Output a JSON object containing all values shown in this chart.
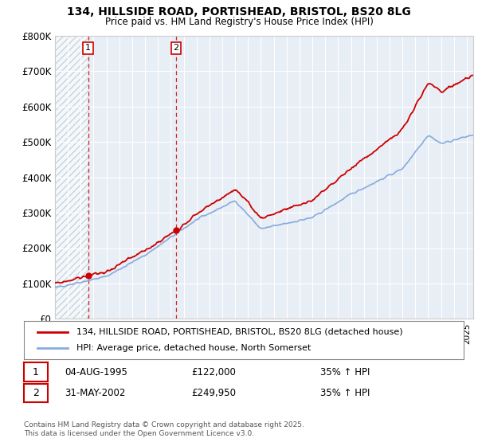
{
  "title": "134, HILLSIDE ROAD, PORTISHEAD, BRISTOL, BS20 8LG",
  "subtitle": "Price paid vs. HM Land Registry's House Price Index (HPI)",
  "legend_line1": "134, HILLSIDE ROAD, PORTISHEAD, BRISTOL, BS20 8LG (detached house)",
  "legend_line2": "HPI: Average price, detached house, North Somerset",
  "annotation1_label": "1",
  "annotation1_date": "04-AUG-1995",
  "annotation1_price": "£122,000",
  "annotation1_hpi": "35% ↑ HPI",
  "annotation2_label": "2",
  "annotation2_date": "31-MAY-2002",
  "annotation2_price": "£249,950",
  "annotation2_hpi": "35% ↑ HPI",
  "footer": "Contains HM Land Registry data © Crown copyright and database right 2025.\nThis data is licensed under the Open Government Licence v3.0.",
  "ylim": [
    0,
    800000
  ],
  "yticks": [
    0,
    100000,
    200000,
    300000,
    400000,
    500000,
    600000,
    700000,
    800000
  ],
  "ytick_labels": [
    "£0",
    "£100K",
    "£200K",
    "£300K",
    "£400K",
    "£500K",
    "£600K",
    "£700K",
    "£800K"
  ],
  "line1_color": "#cc0000",
  "line2_color": "#88aadd",
  "background_color": "#ffffff",
  "plot_bg_color": "#e8eef5",
  "grid_color": "#ffffff",
  "annotation_marker_color": "#cc0000",
  "annotation_box_color": "#cc0000",
  "sale1_x": 1995.583,
  "sale1_y": 122000,
  "sale2_x": 2002.417,
  "sale2_y": 249950,
  "xlim_start": 1993.0,
  "xlim_end": 2025.5,
  "hatch_end": 1995.583
}
